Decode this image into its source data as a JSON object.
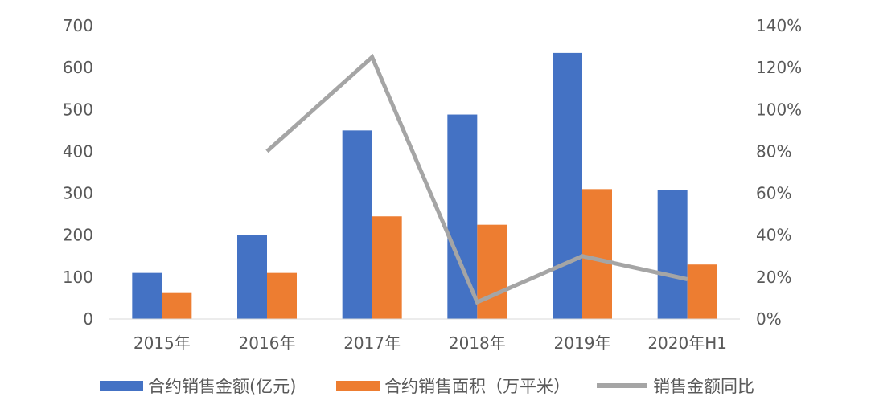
{
  "chart_data": {
    "type": "bar",
    "categories": [
      "2015年",
      "2016年",
      "2017年",
      "2018年",
      "2019年",
      "2020年H1"
    ],
    "series": [
      {
        "name": "合约销售金额(亿元)",
        "type": "bar",
        "axis": "left",
        "color": "#4472C4",
        "values": [
          110,
          200,
          450,
          488,
          635,
          308
        ]
      },
      {
        "name": "合约销售面积（万平米）",
        "type": "bar",
        "axis": "left",
        "color": "#ED7D31",
        "values": [
          62,
          110,
          245,
          225,
          310,
          130
        ]
      },
      {
        "name": "销售金额同比",
        "type": "line",
        "axis": "right",
        "color": "#A5A5A5",
        "values": [
          null,
          80,
          125,
          8,
          30,
          19
        ]
      }
    ],
    "y_left": {
      "min": 0,
      "max": 700,
      "ticks": [
        "0",
        "100",
        "200",
        "300",
        "400",
        "500",
        "600",
        "700"
      ]
    },
    "y_right": {
      "min": 0,
      "max": 140,
      "ticks": [
        "0%",
        "20%",
        "40%",
        "60%",
        "80%",
        "100%",
        "120%",
        "140%"
      ]
    },
    "grid": false,
    "legend_position": "bottom"
  }
}
